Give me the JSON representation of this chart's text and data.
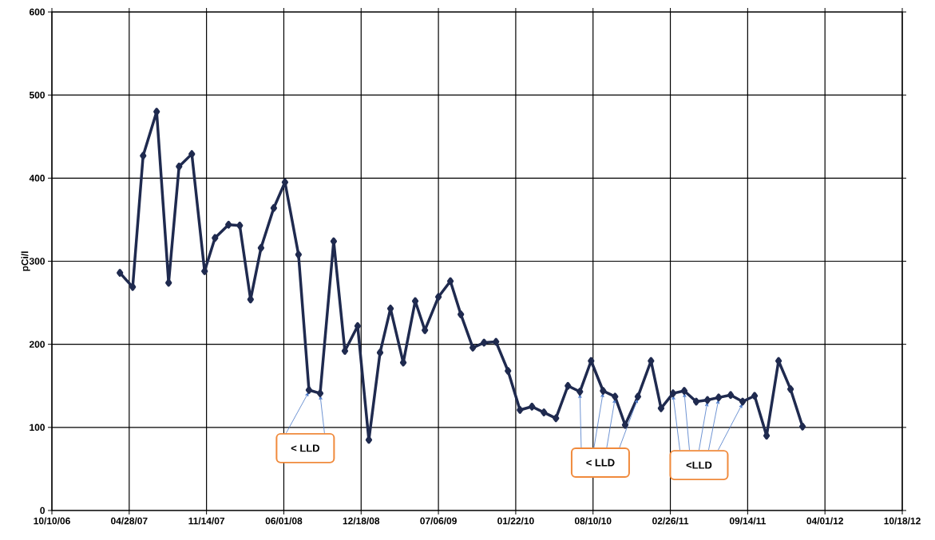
{
  "chart_data": {
    "type": "line",
    "ylabel": "pCi/l",
    "color": "#1f2a4f",
    "marker": "diamond",
    "grid": true,
    "xlim": [
      "2006-10-10",
      "2012-10-18"
    ],
    "xticks": [
      {
        "value": "2006-10-10",
        "label": "10/10/06"
      },
      {
        "value": "2007-04-28",
        "label": "04/28/07"
      },
      {
        "value": "2007-11-14",
        "label": "11/14/07"
      },
      {
        "value": "2008-06-01",
        "label": "06/01/08"
      },
      {
        "value": "2008-12-18",
        "label": "12/18/08"
      },
      {
        "value": "2009-07-06",
        "label": "07/06/09"
      },
      {
        "value": "2010-01-22",
        "label": "01/22/10"
      },
      {
        "value": "2010-08-10",
        "label": "08/10/10"
      },
      {
        "value": "2011-02-26",
        "label": "02/26/11"
      },
      {
        "value": "2011-09-14",
        "label": "09/14/11"
      },
      {
        "value": "2012-04-01",
        "label": "04/01/12"
      },
      {
        "value": "2012-10-18",
        "label": "10/18/12"
      }
    ],
    "ylim": [
      0,
      600
    ],
    "yticks": [
      0,
      100,
      200,
      300,
      400,
      500,
      600
    ],
    "x": [
      "2007-04-04",
      "2007-05-07",
      "2007-06-03",
      "2007-07-08",
      "2007-08-08",
      "2007-09-04",
      "2007-10-07",
      "2007-11-09",
      "2007-12-06",
      "2008-01-10",
      "2008-02-08",
      "2008-03-07",
      "2008-04-03",
      "2008-05-06",
      "2008-06-04",
      "2008-07-09",
      "2008-08-05",
      "2008-09-03",
      "2008-10-08",
      "2008-11-06",
      "2008-12-09",
      "2009-01-07",
      "2009-02-05",
      "2009-03-04",
      "2009-04-06",
      "2009-05-07",
      "2009-06-01",
      "2009-07-06",
      "2009-08-06",
      "2009-09-02",
      "2009-10-03",
      "2009-11-01",
      "2009-12-02",
      "2010-01-02",
      "2010-02-02",
      "2010-03-05",
      "2010-04-05",
      "2010-05-06",
      "2010-06-06",
      "2010-07-07",
      "2010-08-05",
      "2010-09-05",
      "2010-10-06",
      "2010-11-01",
      "2010-12-04",
      "2011-01-07",
      "2011-02-02",
      "2011-03-05",
      "2011-04-03",
      "2011-05-04",
      "2011-06-02",
      "2011-07-01",
      "2011-08-01",
      "2011-09-01",
      "2011-10-02",
      "2011-11-02",
      "2011-12-03",
      "2012-01-03",
      "2012-02-03"
    ],
    "values": [
      286,
      269,
      427,
      480,
      274,
      414,
      429,
      288,
      328,
      344,
      343,
      254,
      316,
      364,
      395,
      308,
      145,
      141,
      324,
      192,
      222,
      85,
      190,
      243,
      178,
      252,
      217,
      257,
      276,
      236,
      196,
      202,
      203,
      168,
      121,
      125,
      118,
      111,
      150,
      143,
      180,
      144,
      137,
      103,
      137,
      180,
      123,
      141,
      144,
      131,
      133,
      136,
      139,
      131,
      138,
      90,
      180,
      146,
      101
    ],
    "annotations": [
      {
        "text": "< LLD",
        "x": "2008-08-05",
        "y": 145
      },
      {
        "text": "< LLD",
        "x": "2010-09-05",
        "y": 144
      },
      {
        "text": "<LLD",
        "x": "2011-03-05",
        "y": 141
      }
    ]
  }
}
